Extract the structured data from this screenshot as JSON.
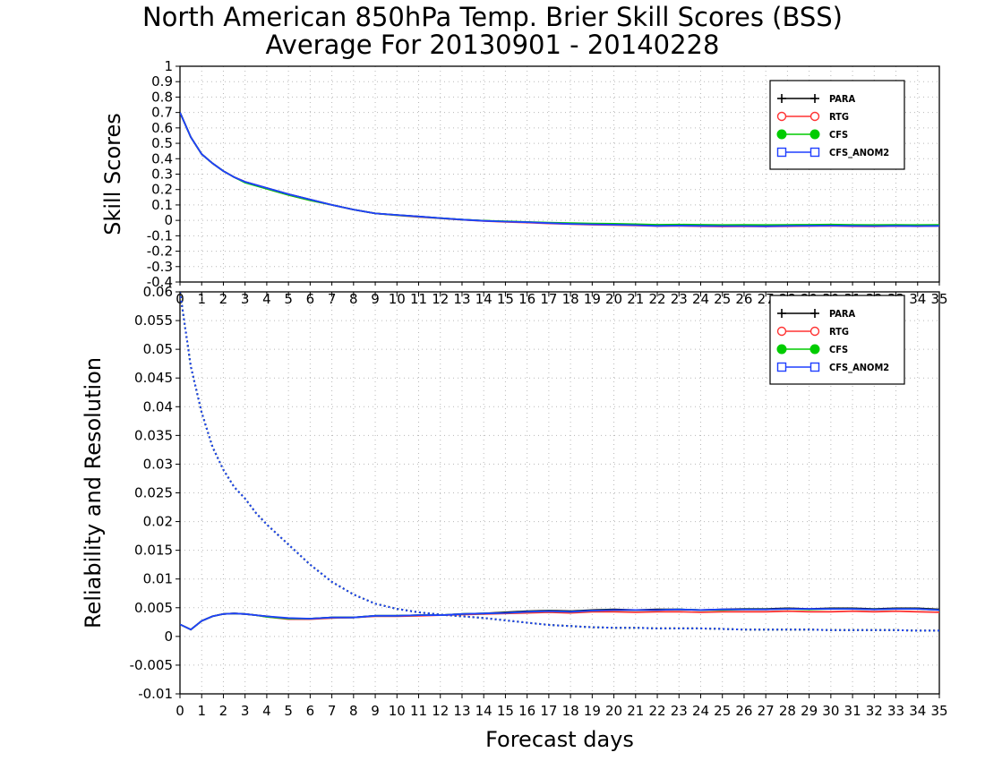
{
  "title_line1": "North American 850hPa Temp. Brier Skill Scores (BSS)",
  "title_line2": "Average For 20130901 - 20140228",
  "xlabel": "Forecast days",
  "colors": {
    "PARA": "#000000",
    "RTG": "#ff3333",
    "CFS": "#00cc00",
    "CFS_ANOM2": "#1f3fff"
  },
  "chart_data": [
    {
      "type": "line",
      "panel": "top",
      "ylabel": "Skill Scores",
      "xlim": [
        0,
        35
      ],
      "ylim": [
        -0.4,
        1
      ],
      "yticks": [
        "1",
        "0.9",
        "0.8",
        "0.7",
        "0.6",
        "0.5",
        "0.4",
        "0.3",
        "0.2",
        "0.1",
        "0",
        "-0.1",
        "-0.2",
        "-0.3",
        "-0.4"
      ],
      "xticks": [
        "0",
        "1",
        "2",
        "3",
        "4",
        "5",
        "6",
        "7",
        "8",
        "9",
        "10",
        "11",
        "12",
        "13",
        "14",
        "15",
        "16",
        "17",
        "18",
        "19",
        "20",
        "21",
        "22",
        "23",
        "24",
        "25",
        "26",
        "27",
        "28",
        "29",
        "30",
        "31",
        "32",
        "33",
        "34",
        "35"
      ],
      "grid": true,
      "legend": "top-right",
      "x": [
        0,
        0.5,
        1,
        1.5,
        2,
        2.5,
        3,
        4,
        5,
        6,
        7,
        8,
        9,
        10,
        11,
        12,
        13,
        14,
        15,
        16,
        17,
        18,
        19,
        20,
        21,
        22,
        23,
        24,
        25,
        26,
        27,
        28,
        29,
        30,
        31,
        32,
        33,
        34,
        35
      ],
      "series": [
        {
          "name": "PARA",
          "marker": "plus",
          "values": [
            0.7,
            0.54,
            0.43,
            0.37,
            0.32,
            0.28,
            0.25,
            0.21,
            0.17,
            0.135,
            0.1,
            0.07,
            0.045,
            0.035,
            0.025,
            0.015,
            0.005,
            -0.002,
            -0.008,
            -0.012,
            -0.018,
            -0.022,
            -0.025,
            -0.027,
            -0.03,
            -0.035,
            -0.033,
            -0.035,
            -0.036,
            -0.036,
            -0.037,
            -0.035,
            -0.034,
            -0.033,
            -0.035,
            -0.036,
            -0.035,
            -0.036,
            -0.035
          ]
        },
        {
          "name": "RTG",
          "marker": "open-circle",
          "values": [
            0.7,
            0.54,
            0.43,
            0.37,
            0.32,
            0.28,
            0.25,
            0.205,
            0.165,
            0.13,
            0.1,
            0.07,
            0.045,
            0.033,
            0.022,
            0.013,
            0.004,
            -0.004,
            -0.01,
            -0.014,
            -0.02,
            -0.024,
            -0.028,
            -0.03,
            -0.033,
            -0.037,
            -0.036,
            -0.038,
            -0.04,
            -0.039,
            -0.04,
            -0.038,
            -0.037,
            -0.035,
            -0.038,
            -0.039,
            -0.037,
            -0.038,
            -0.036
          ]
        },
        {
          "name": "CFS",
          "marker": "filled-circle",
          "values": [
            0.7,
            0.54,
            0.43,
            0.37,
            0.32,
            0.28,
            0.245,
            0.205,
            0.165,
            0.13,
            0.1,
            0.07,
            0.045,
            0.034,
            0.024,
            0.014,
            0.005,
            -0.002,
            -0.006,
            -0.01,
            -0.015,
            -0.018,
            -0.02,
            -0.022,
            -0.025,
            -0.028,
            -0.027,
            -0.028,
            -0.03,
            -0.029,
            -0.03,
            -0.029,
            -0.028,
            -0.027,
            -0.029,
            -0.03,
            -0.029,
            -0.03,
            -0.029
          ]
        },
        {
          "name": "CFS_ANOM2",
          "marker": "open-square",
          "values": [
            0.7,
            0.54,
            0.43,
            0.37,
            0.32,
            0.28,
            0.25,
            0.21,
            0.17,
            0.135,
            0.1,
            0.07,
            0.045,
            0.035,
            0.025,
            0.015,
            0.005,
            -0.003,
            -0.008,
            -0.012,
            -0.018,
            -0.023,
            -0.026,
            -0.028,
            -0.031,
            -0.036,
            -0.034,
            -0.036,
            -0.037,
            -0.037,
            -0.038,
            -0.036,
            -0.035,
            -0.034,
            -0.036,
            -0.037,
            -0.036,
            -0.037,
            -0.036
          ]
        }
      ]
    },
    {
      "type": "line",
      "panel": "bottom",
      "ylabel": "Reliability and Resolution",
      "xlim": [
        0,
        35
      ],
      "ylim": [
        -0.01,
        0.06
      ],
      "yticks": [
        "0.06",
        "0.055",
        "0.05",
        "0.045",
        "0.04",
        "0.035",
        "0.03",
        "0.025",
        "0.02",
        "0.015",
        "0.01",
        "0.005",
        "0",
        "-0.005",
        "-0.01"
      ],
      "xticks": [
        "0",
        "1",
        "2",
        "3",
        "4",
        "5",
        "6",
        "7",
        "8",
        "9",
        "10",
        "11",
        "12",
        "13",
        "14",
        "15",
        "16",
        "17",
        "18",
        "19",
        "20",
        "21",
        "22",
        "23",
        "24",
        "25",
        "26",
        "27",
        "28",
        "29",
        "30",
        "31",
        "32",
        "33",
        "34",
        "35"
      ],
      "xticks_top": [
        "0",
        "1",
        "2",
        "3",
        "4",
        "5",
        "6",
        "7",
        "8",
        "9",
        "10",
        "11",
        "12",
        "13",
        "14",
        "15",
        "16",
        "17",
        "18",
        "19",
        "20",
        "21",
        "22",
        "23",
        "24",
        "25",
        "26",
        "27",
        "28",
        "29",
        "30",
        "31",
        "32",
        "33",
        "34",
        "35"
      ],
      "grid": true,
      "legend": "top-right",
      "x": [
        0,
        0.5,
        1,
        1.5,
        2,
        2.5,
        3,
        3.5,
        4,
        5,
        6,
        7,
        8,
        9,
        10,
        11,
        12,
        13,
        14,
        15,
        16,
        17,
        18,
        19,
        20,
        21,
        22,
        23,
        24,
        25,
        26,
        27,
        28,
        29,
        30,
        31,
        32,
        33,
        34,
        35
      ],
      "series": [
        {
          "name": "PARA",
          "marker": "plus",
          "reliability": [
            0.0021,
            0.0012,
            0.0027,
            0.0035,
            0.0039,
            0.004,
            0.0039,
            0.0037,
            0.0035,
            0.0031,
            0.0031,
            0.0033,
            0.0033,
            0.0036,
            0.0036,
            0.0037,
            0.0037,
            0.0039,
            0.004,
            0.0042,
            0.0044,
            0.0045,
            0.0044,
            0.0046,
            0.0047,
            0.0046,
            0.0047,
            0.0047,
            0.0046,
            0.0047,
            0.0048,
            0.0048,
            0.0049,
            0.0048,
            0.0049,
            0.0049,
            0.0048,
            0.0049,
            0.0049,
            0.0047
          ],
          "resolution": [
            0.06,
            0.047,
            0.039,
            0.033,
            0.029,
            0.026,
            0.024,
            0.0215,
            0.0195,
            0.016,
            0.0125,
            0.0095,
            0.0073,
            0.0057,
            0.0048,
            0.0042,
            0.0038,
            0.0035,
            0.0032,
            0.0028,
            0.0024,
            0.002,
            0.0018,
            0.0016,
            0.0015,
            0.0015,
            0.0014,
            0.0014,
            0.0014,
            0.0013,
            0.0012,
            0.0012,
            0.0012,
            0.0012,
            0.0011,
            0.0011,
            0.0011,
            0.0011,
            0.001,
            0.001
          ]
        },
        {
          "name": "RTG",
          "marker": "open-circle",
          "reliability": [
            0.0021,
            0.0012,
            0.0027,
            0.0035,
            0.0039,
            0.004,
            0.0039,
            0.0037,
            0.0034,
            0.003,
            0.003,
            0.0032,
            0.0033,
            0.0035,
            0.0035,
            0.0036,
            0.0037,
            0.0038,
            0.0039,
            0.004,
            0.0041,
            0.0042,
            0.0041,
            0.0043,
            0.0043,
            0.0042,
            0.0043,
            0.0043,
            0.0042,
            0.0043,
            0.0043,
            0.0043,
            0.0044,
            0.0043,
            0.0043,
            0.0044,
            0.0043,
            0.0044,
            0.0043,
            0.0042
          ],
          "resolution": [
            0.06,
            0.047,
            0.039,
            0.033,
            0.029,
            0.026,
            0.024,
            0.0215,
            0.0195,
            0.016,
            0.0125,
            0.0095,
            0.0073,
            0.0057,
            0.0048,
            0.0042,
            0.0038,
            0.0035,
            0.0032,
            0.0028,
            0.0024,
            0.002,
            0.0018,
            0.0016,
            0.0015,
            0.0015,
            0.0014,
            0.0014,
            0.0014,
            0.0013,
            0.0012,
            0.0012,
            0.0012,
            0.0012,
            0.0011,
            0.0011,
            0.0011,
            0.0011,
            0.001,
            0.001
          ]
        },
        {
          "name": "CFS",
          "marker": "filled-circle",
          "reliability": [
            0.0021,
            0.0012,
            0.0027,
            0.0035,
            0.0039,
            0.004,
            0.0039,
            0.0037,
            0.0034,
            0.0031,
            0.0031,
            0.0033,
            0.0033,
            0.0036,
            0.0036,
            0.0037,
            0.0037,
            0.0039,
            0.004,
            0.0041,
            0.0043,
            0.0044,
            0.0043,
            0.0045,
            0.0046,
            0.0046,
            0.0046,
            0.0047,
            0.0046,
            0.0046,
            0.0047,
            0.0047,
            0.0048,
            0.0047,
            0.0048,
            0.0048,
            0.0047,
            0.0048,
            0.0048,
            0.0046
          ],
          "resolution": [
            0.06,
            0.047,
            0.039,
            0.033,
            0.029,
            0.026,
            0.024,
            0.0215,
            0.0195,
            0.016,
            0.0125,
            0.0095,
            0.0073,
            0.0057,
            0.0048,
            0.0042,
            0.0038,
            0.0035,
            0.0032,
            0.0028,
            0.0024,
            0.002,
            0.0018,
            0.0016,
            0.0015,
            0.0015,
            0.0014,
            0.0014,
            0.0014,
            0.0013,
            0.0012,
            0.0012,
            0.0012,
            0.0012,
            0.0011,
            0.0011,
            0.0011,
            0.0011,
            0.001,
            0.001
          ]
        },
        {
          "name": "CFS_ANOM2",
          "marker": "open-square",
          "reliability": [
            0.0021,
            0.0012,
            0.0027,
            0.0035,
            0.0039,
            0.004,
            0.0039,
            0.0037,
            0.0035,
            0.0032,
            0.0031,
            0.0033,
            0.0033,
            0.0036,
            0.0036,
            0.0037,
            0.0037,
            0.0039,
            0.004,
            0.0041,
            0.0043,
            0.0044,
            0.0043,
            0.0045,
            0.0046,
            0.0046,
            0.0046,
            0.0047,
            0.0046,
            0.0047,
            0.0047,
            0.0047,
            0.0048,
            0.0048,
            0.0048,
            0.0048,
            0.0047,
            0.0048,
            0.0048,
            0.0046
          ],
          "resolution": [
            0.06,
            0.047,
            0.039,
            0.033,
            0.029,
            0.026,
            0.024,
            0.0215,
            0.0195,
            0.016,
            0.0125,
            0.0095,
            0.0073,
            0.0057,
            0.0048,
            0.0042,
            0.0038,
            0.0035,
            0.0032,
            0.0028,
            0.0024,
            0.002,
            0.0018,
            0.0016,
            0.0015,
            0.0015,
            0.0014,
            0.0014,
            0.0014,
            0.0013,
            0.0012,
            0.0012,
            0.0012,
            0.0012,
            0.0011,
            0.0011,
            0.0011,
            0.0011,
            0.001,
            0.001
          ]
        }
      ]
    }
  ]
}
